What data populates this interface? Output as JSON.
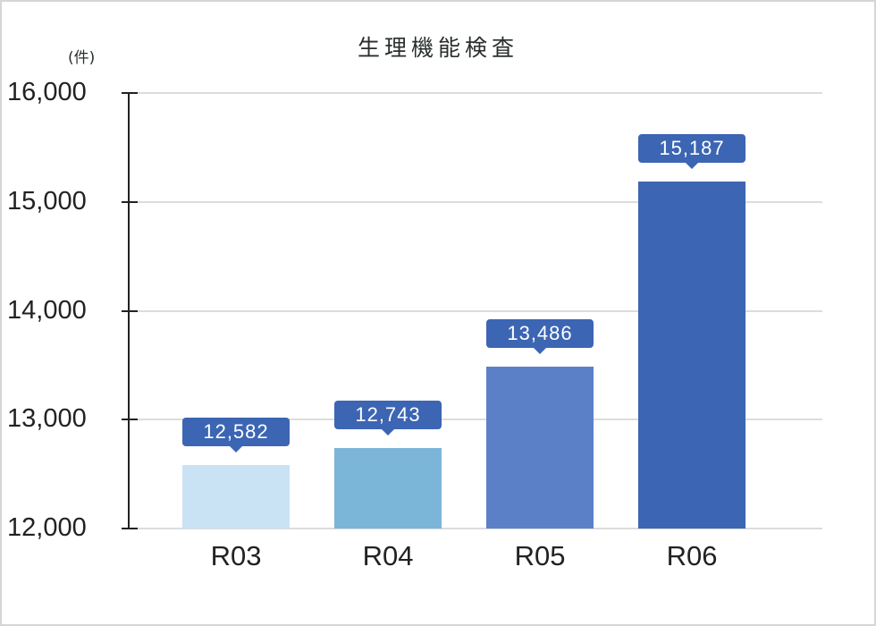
{
  "chart_data": {
    "type": "bar",
    "title": "生理機能検査",
    "ylabel": "(件)",
    "xlabel": "",
    "categories": [
      "R03",
      "R04",
      "R05",
      "R06"
    ],
    "values": [
      12582,
      12743,
      13486,
      15187
    ],
    "data_labels": [
      "12,582",
      "12,743",
      "13,486",
      "15,187"
    ],
    "bar_colors": [
      "#c9e2f4",
      "#7bb6d9",
      "#5b80c8",
      "#3c65b3"
    ],
    "label_color": "#3c65b3",
    "ylim": [
      12000,
      16000
    ],
    "yticks": [
      12000,
      13000,
      14000,
      15000,
      16000
    ],
    "ytick_labels": [
      "12,000",
      "13,000",
      "14,000",
      "15,000",
      "16,000"
    ],
    "grid": true,
    "legend": null
  }
}
